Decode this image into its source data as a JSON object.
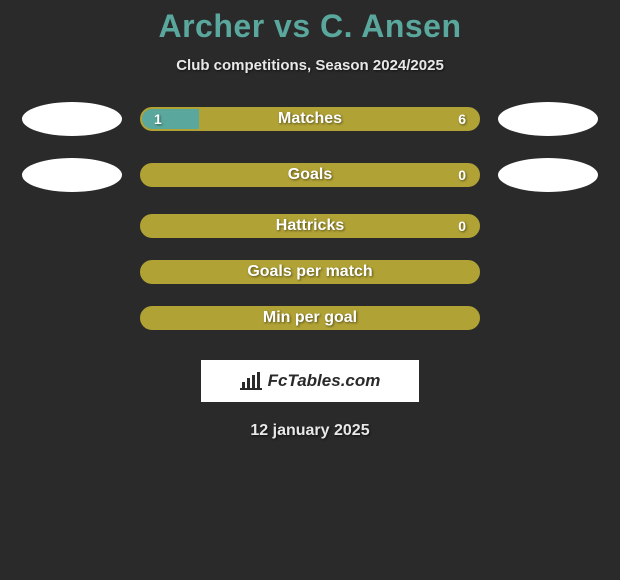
{
  "title": "Archer vs C. Ansen",
  "subtitle": "Club competitions, Season 2024/2025",
  "colors": {
    "background": "#2a2a2a",
    "accent_teal": "#5aa89d",
    "accent_olive": "#b0a235",
    "text": "#ffffff",
    "oval": "#ffffff",
    "badge_bg": "#ffffff",
    "badge_text": "#2a2a2a"
  },
  "stats": [
    {
      "label": "Matches",
      "left_value": "1",
      "right_value": "6",
      "left_pct": 17,
      "show_ovals": true,
      "show_values": true
    },
    {
      "label": "Goals",
      "left_value": "",
      "right_value": "0",
      "left_pct": 0,
      "show_ovals": true,
      "show_values": true
    },
    {
      "label": "Hattricks",
      "left_value": "",
      "right_value": "0",
      "left_pct": 0,
      "show_ovals": false,
      "show_values": true
    },
    {
      "label": "Goals per match",
      "left_value": "",
      "right_value": "",
      "left_pct": 0,
      "show_ovals": false,
      "show_values": false
    },
    {
      "label": "Min per goal",
      "left_value": "",
      "right_value": "",
      "left_pct": 0,
      "show_ovals": false,
      "show_values": false
    }
  ],
  "badge": {
    "text": "FcTables.com"
  },
  "date": "12 january 2025"
}
